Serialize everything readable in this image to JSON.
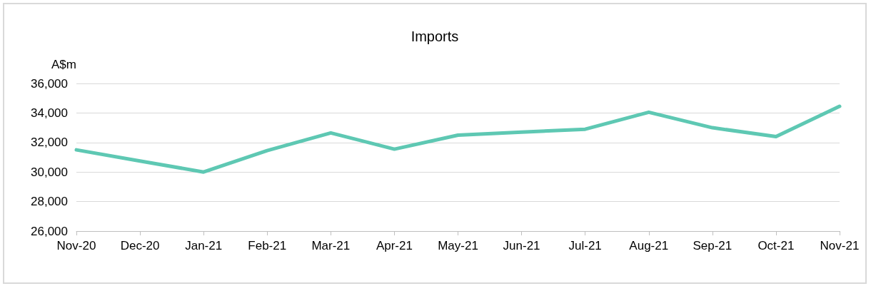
{
  "chart_data": {
    "type": "line",
    "title": "Imports",
    "ylabel": "A$m",
    "categories": [
      "Nov-20",
      "Dec-20",
      "Jan-21",
      "Feb-21",
      "Mar-21",
      "Apr-21",
      "May-21",
      "Jun-21",
      "Jul-21",
      "Aug-21",
      "Sep-21",
      "Oct-21",
      "Nov-21"
    ],
    "series": [
      {
        "color": "#5ec8b3",
        "values": [
          31500,
          30750,
          30000,
          31450,
          32650,
          31550,
          32500,
          32700,
          32900,
          34050,
          33000,
          32400,
          34450
        ]
      }
    ],
    "ylim": [
      26000,
      36000
    ],
    "yticks": [
      {
        "value": 26000,
        "label": "26,000"
      },
      {
        "value": 28000,
        "label": "28,000"
      },
      {
        "value": 30000,
        "label": "30,000"
      },
      {
        "value": 32000,
        "label": "32,000"
      },
      {
        "value": 34000,
        "label": "34,000"
      },
      {
        "value": 36000,
        "label": "36,000"
      }
    ],
    "grid": "y",
    "marker": "none",
    "line_style": "solid"
  }
}
